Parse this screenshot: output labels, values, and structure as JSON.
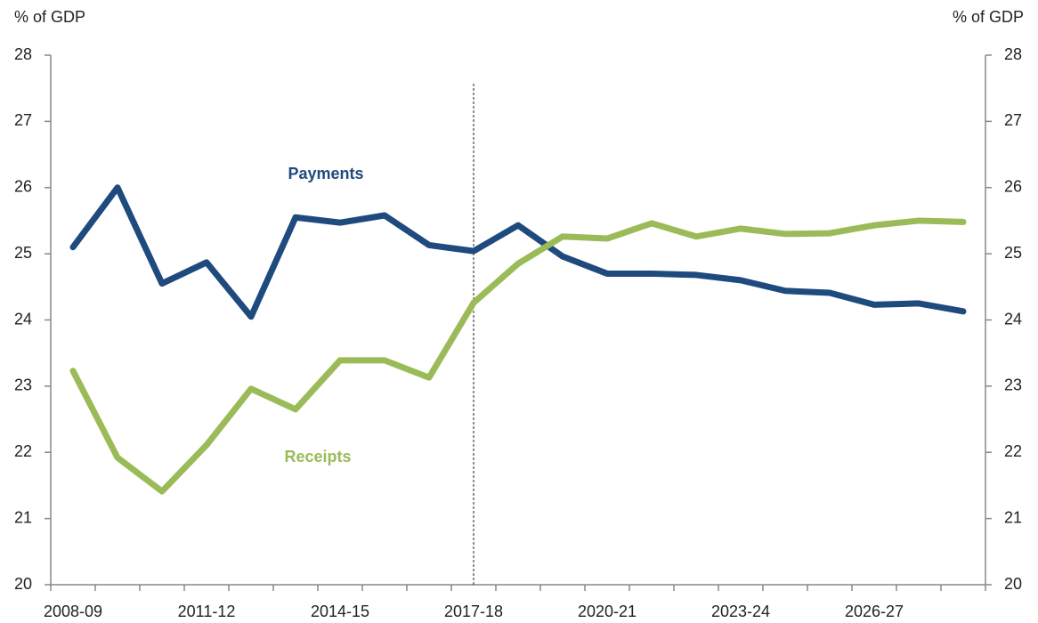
{
  "chart_data": {
    "type": "line",
    "y_axis_label": "% of GDP",
    "y2_axis_label": "% of GDP",
    "categories": [
      "2008-09",
      null,
      null,
      "2011-12",
      null,
      null,
      "2014-15",
      null,
      null,
      "2017-18",
      null,
      null,
      "2020-21",
      null,
      null,
      "2023-24",
      null,
      null,
      "2026-27",
      null,
      null
    ],
    "series": [
      {
        "name": "Payments",
        "color": "#1f4a7e",
        "values": [
          25.1,
          26.0,
          24.55,
          24.87,
          24.05,
          25.55,
          25.47,
          25.58,
          25.13,
          25.04,
          25.43,
          24.96,
          24.7,
          24.7,
          24.68,
          24.6,
          24.44,
          24.41,
          24.23,
          24.25,
          24.13
        ]
      },
      {
        "name": "Receipts",
        "color": "#9bbb59",
        "values": [
          23.23,
          21.92,
          21.41,
          22.11,
          22.96,
          22.65,
          23.39,
          23.39,
          23.13,
          24.26,
          24.85,
          25.26,
          25.23,
          25.46,
          25.26,
          25.38,
          25.3,
          25.31,
          25.43,
          25.5,
          25.48
        ]
      }
    ],
    "ylim": [
      20,
      28
    ],
    "yticks": [
      20,
      21,
      22,
      23,
      24,
      25,
      26,
      27,
      28
    ],
    "y2lim": [
      20,
      28
    ],
    "y2ticks": [
      20,
      21,
      22,
      23,
      24,
      25,
      26,
      27,
      28
    ],
    "divider": {
      "at": "2017-18",
      "top": 27.57
    },
    "grid": false
  }
}
